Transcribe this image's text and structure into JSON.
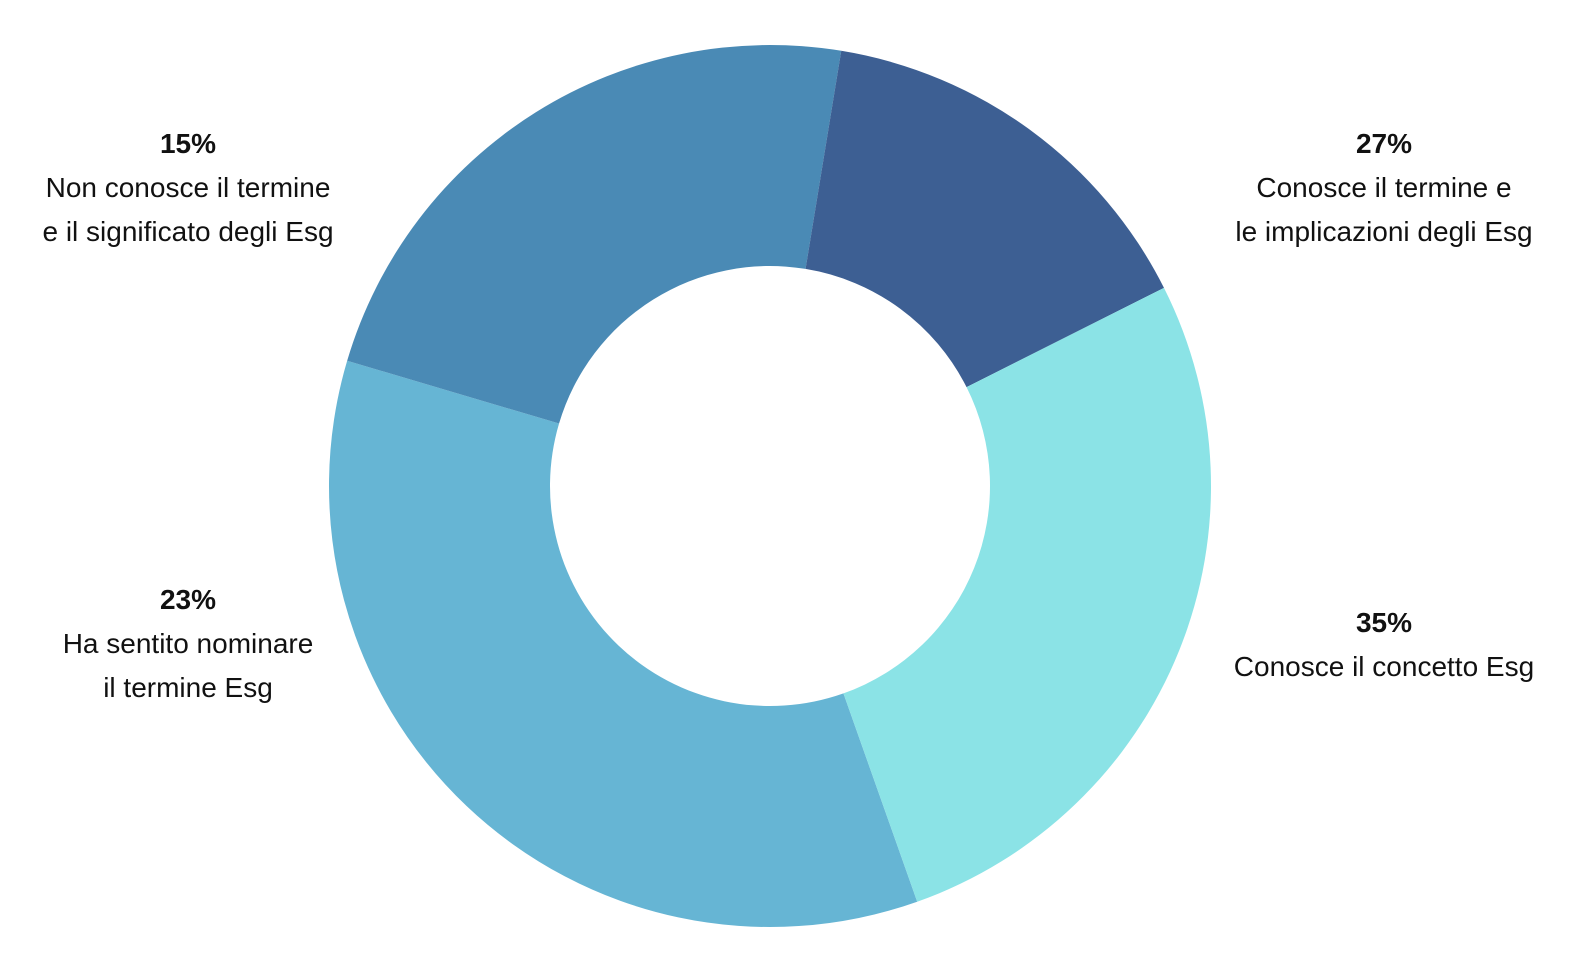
{
  "chart_data": {
    "type": "pie",
    "donut": true,
    "title": "",
    "slices": [
      {
        "value": 35,
        "label": "35%",
        "lines": [
          "Conosce il concetto Esg"
        ],
        "color": "#66b5d4"
      },
      {
        "value": 23,
        "label": "23%",
        "lines": [
          "Ha sentito nominare",
          "il termine Esg"
        ],
        "color": "#4a8ab5"
      },
      {
        "value": 15,
        "label": "15%",
        "lines": [
          "Non conosce il termine",
          "e il significato degli Esg"
        ],
        "color": "#3d5f93"
      },
      {
        "value": 27,
        "label": "27%",
        "lines": [
          "Conosce il termine e",
          "le implicazioni degli Esg"
        ],
        "color": "#8be3e6"
      }
    ]
  }
}
